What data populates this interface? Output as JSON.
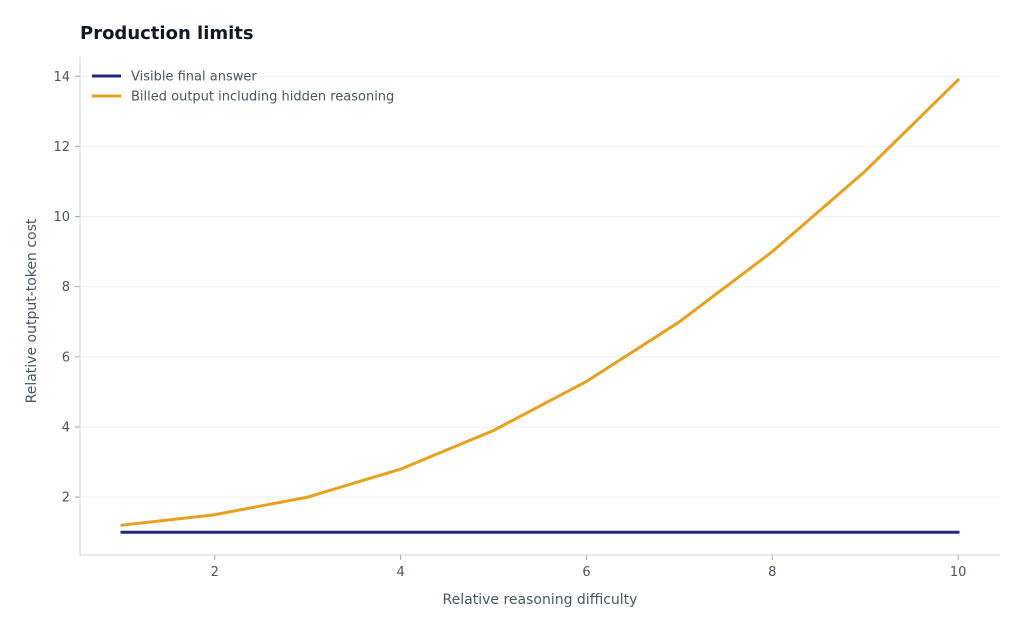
{
  "chart_data": {
    "type": "line",
    "title": "Production limits",
    "xlabel": "Relative reasoning difficulty",
    "ylabel": "Relative output-token cost",
    "x": [
      1,
      2,
      3,
      4,
      5,
      6,
      7,
      8,
      9,
      10
    ],
    "xlim": [
      0.55,
      10.45
    ],
    "ylim": [
      0.35,
      14.55
    ],
    "xticks": [
      2,
      4,
      6,
      8,
      10
    ],
    "yticks": [
      2,
      4,
      6,
      8,
      10,
      12,
      14
    ],
    "grid": true,
    "legend_position": "top-left",
    "series": [
      {
        "name": "Visible final answer",
        "color": "#1e2a78",
        "values": [
          1,
          1,
          1,
          1,
          1,
          1,
          1,
          1,
          1,
          1
        ]
      },
      {
        "name": "Billed output including hidden reasoning",
        "color": "#e6a11f",
        "values": [
          1.2,
          1.5,
          2.0,
          2.8,
          3.9,
          5.3,
          7.0,
          9.0,
          11.3,
          13.9
        ]
      }
    ]
  }
}
